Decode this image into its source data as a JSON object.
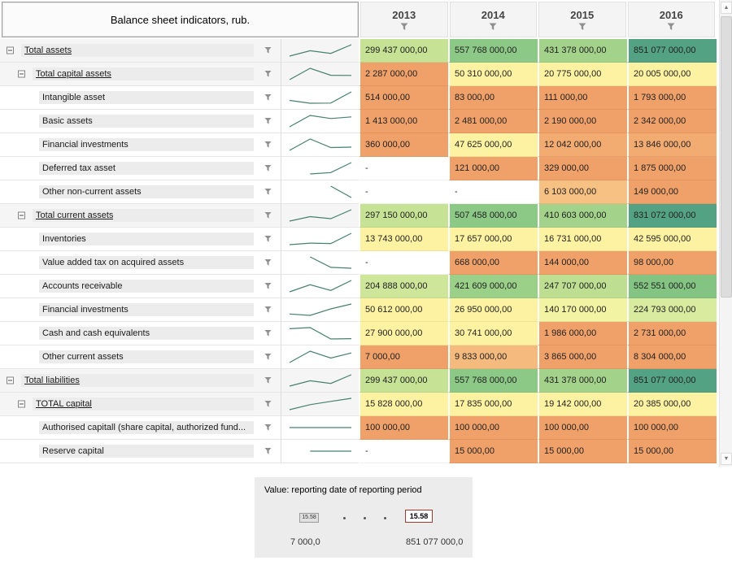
{
  "header": {
    "title": "Balance sheet indicators, rub.",
    "years": [
      "2013",
      "2014",
      "2015",
      "2016"
    ]
  },
  "colors": {
    "sparkline": "#47806d",
    "filter_icon": "#8f8f8f",
    "header_bg": "#f4f4f4",
    "group_row_bg": "#f5f5f5",
    "label_chip_bg": "#ececec"
  },
  "rows": [
    {
      "label": "Total assets",
      "level": 1,
      "group": true,
      "values": [
        "299 437 000,00",
        "557 768 000,00",
        "431 378 000,00",
        "851 077 000,00"
      ],
      "colors": [
        "#c6e294",
        "#8dc986",
        "#a3d28b",
        "#54a284"
      ]
    },
    {
      "label": "Total capital assets",
      "level": 2,
      "group": true,
      "values": [
        "2 287 000,00",
        "50 310 000,00",
        "20 775 000,00",
        "20 005 000,00"
      ],
      "colors": [
        "#f0a169",
        "#fdf2a1",
        "#fdf2a1",
        "#fdf2a1"
      ]
    },
    {
      "label": "Intangible asset",
      "level": 3,
      "group": false,
      "values": [
        "514 000,00",
        "83 000,00",
        "111 000,00",
        "1 793 000,00"
      ],
      "colors": [
        "#f0a169",
        "#f0a169",
        "#f0a169",
        "#f0a169"
      ]
    },
    {
      "label": "Basic assets",
      "level": 3,
      "group": false,
      "values": [
        "1 413 000,00",
        "2 481 000,00",
        "2 190 000,00",
        "2 342 000,00"
      ],
      "colors": [
        "#f0a169",
        "#f0a169",
        "#f0a169",
        "#f0a169"
      ]
    },
    {
      "label": "Financial investments",
      "level": 3,
      "group": false,
      "values": [
        "360 000,00",
        "47 625 000,00",
        "12 042 000,00",
        "13 846 000,00"
      ],
      "colors": [
        "#f0a169",
        "#fdf2a1",
        "#f2ab71",
        "#f2ab71"
      ]
    },
    {
      "label": "Deferred tax asset",
      "level": 3,
      "group": false,
      "values": [
        "-",
        "121 000,00",
        "329 000,00",
        "1 875 000,00"
      ],
      "colors": [
        "#ffffff",
        "#f0a169",
        "#f0a169",
        "#f0a169"
      ]
    },
    {
      "label": "Other non-current assets",
      "level": 3,
      "group": false,
      "values": [
        "-",
        "-",
        "6 103 000,00",
        "149 000,00"
      ],
      "colors": [
        "#ffffff",
        "#ffffff",
        "#f6c183",
        "#f0a169"
      ]
    },
    {
      "label": "Total current assets",
      "level": 2,
      "group": true,
      "values": [
        "297 150 000,00",
        "507 458 000,00",
        "410 603 000,00",
        "831 072 000,00"
      ],
      "colors": [
        "#c6e294",
        "#8dc986",
        "#a3d28b",
        "#54a284"
      ]
    },
    {
      "label": "Inventories",
      "level": 3,
      "group": false,
      "values": [
        "13 743 000,00",
        "17 657 000,00",
        "16 731 000,00",
        "42 595 000,00"
      ],
      "colors": [
        "#fdf2a1",
        "#fdf2a1",
        "#fdf2a1",
        "#fdf2a1"
      ]
    },
    {
      "label": "Value added tax on acquired assets",
      "level": 3,
      "group": false,
      "values": [
        "-",
        "668 000,00",
        "144 000,00",
        "98 000,00"
      ],
      "colors": [
        "#ffffff",
        "#f0a169",
        "#f0a169",
        "#f0a169"
      ]
    },
    {
      "label": "Accounts receivable",
      "level": 3,
      "group": false,
      "values": [
        "204 888 000,00",
        "421 609 000,00",
        "247 707 000,00",
        "552 551 000,00"
      ],
      "colors": [
        "#cde69a",
        "#9bd089",
        "#bede92",
        "#83c483"
      ]
    },
    {
      "label": "Financial investments",
      "level": 3,
      "group": false,
      "values": [
        "50 612 000,00",
        "26 950 000,00",
        "140 170 000,00",
        "224 793 000,00"
      ],
      "colors": [
        "#fdf2a1",
        "#fdf2a1",
        "#f2f3a3",
        "#d9eb9e"
      ]
    },
    {
      "label": "Cash and cash equivalents",
      "level": 3,
      "group": false,
      "values": [
        "27 900 000,00",
        "30 741 000,00",
        "1 986 000,00",
        "2 731 000,00"
      ],
      "colors": [
        "#fdf2a1",
        "#fdf2a1",
        "#f0a169",
        "#f0a169"
      ]
    },
    {
      "label": "Other current assets",
      "level": 3,
      "group": false,
      "values": [
        "7 000,00",
        "9 833 000,00",
        "3 865 000,00",
        "8 304 000,00"
      ],
      "colors": [
        "#f0a169",
        "#f5ba7d",
        "#f0a169",
        "#f0a169"
      ]
    },
    {
      "label": "Total liabilities",
      "level": 1,
      "group": true,
      "values": [
        "299 437 000,00",
        "557 768 000,00",
        "431 378 000,00",
        "851 077 000,00"
      ],
      "colors": [
        "#c6e294",
        "#8dc986",
        "#a3d28b",
        "#54a284"
      ]
    },
    {
      "label": "TOTAL capital",
      "level": 2,
      "group": true,
      "values": [
        "15 828 000,00",
        "17 835 000,00",
        "19 142 000,00",
        "20 385 000,00"
      ],
      "colors": [
        "#fdf2a1",
        "#fdf2a1",
        "#fdf2a1",
        "#fdf2a1"
      ]
    },
    {
      "label": "Authorised capitall (share capital, authorized fund...",
      "level": 3,
      "group": false,
      "values": [
        "100 000,00",
        "100 000,00",
        "100 000,00",
        "100 000,00"
      ],
      "colors": [
        "#f0a169",
        "#f0a169",
        "#f0a169",
        "#f0a169"
      ]
    },
    {
      "label": "Reserve capital",
      "level": 3,
      "group": false,
      "values": [
        "-",
        "15 000,00",
        "15 000,00",
        "15 000,00"
      ],
      "colors": [
        "#ffffff",
        "#f0a169",
        "#f0a169",
        "#f0a169"
      ]
    }
  ],
  "legend": {
    "title": "Value: reporting date of reporting period",
    "left_box": "15.58",
    "right_box": "15.58",
    "min": "7 000,0",
    "max": "851 077 000,0"
  }
}
